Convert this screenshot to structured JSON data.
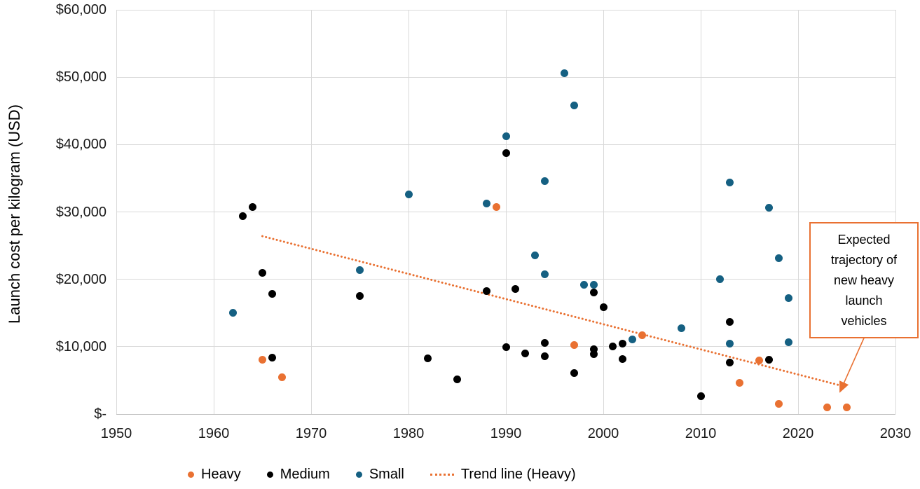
{
  "chart_data": {
    "type": "scatter",
    "title": "",
    "xlabel": "",
    "ylabel": "Launch cost per kilogram (USD)",
    "xlim": [
      1950,
      2030
    ],
    "ylim": [
      0,
      60000
    ],
    "grid": true,
    "legend_position": "bottom",
    "x_ticks": [
      {
        "v": 1950,
        "label": "1950"
      },
      {
        "v": 1960,
        "label": "1960"
      },
      {
        "v": 1970,
        "label": "1970"
      },
      {
        "v": 1980,
        "label": "1980"
      },
      {
        "v": 1990,
        "label": "1990"
      },
      {
        "v": 2000,
        "label": "2000"
      },
      {
        "v": 2010,
        "label": "2010"
      },
      {
        "v": 2020,
        "label": "2020"
      },
      {
        "v": 2030,
        "label": "2030"
      }
    ],
    "y_ticks": [
      {
        "v": 60000,
        "label": "$60,000"
      },
      {
        "v": 50000,
        "label": "$50,000"
      },
      {
        "v": 40000,
        "label": "$40,000"
      },
      {
        "v": 30000,
        "label": "$30,000"
      },
      {
        "v": 20000,
        "label": "$20,000"
      },
      {
        "v": 10000,
        "label": "$10,000"
      },
      {
        "v": 0,
        "label": "$-"
      }
    ],
    "series": [
      {
        "name": "Heavy",
        "color": "#E97132",
        "points": [
          [
            1965,
            8100
          ],
          [
            1967,
            5500
          ],
          [
            1989,
            30700
          ],
          [
            1997,
            10200
          ],
          [
            2004,
            11700
          ],
          [
            2014,
            4600
          ],
          [
            2016,
            8000
          ],
          [
            2018,
            1500
          ],
          [
            2023,
            1000
          ],
          [
            2025,
            1000
          ]
        ]
      },
      {
        "name": "Medium",
        "color": "#000000",
        "points": [
          [
            1963,
            29400
          ],
          [
            1964,
            30700
          ],
          [
            1965,
            21000
          ],
          [
            1966,
            17800
          ],
          [
            1966,
            8400
          ],
          [
            1975,
            17500
          ],
          [
            1982,
            8300
          ],
          [
            1985,
            5100
          ],
          [
            1988,
            18300
          ],
          [
            1990,
            38700
          ],
          [
            1990,
            9900
          ],
          [
            1991,
            18600
          ],
          [
            1992,
            9000
          ],
          [
            1994,
            10600
          ],
          [
            1994,
            8600
          ],
          [
            1997,
            6100
          ],
          [
            1999,
            18000
          ],
          [
            1999,
            9600
          ],
          [
            1999,
            8900
          ],
          [
            2000,
            15900
          ],
          [
            2001,
            10000
          ],
          [
            2002,
            10400
          ],
          [
            2002,
            8200
          ],
          [
            2010,
            2600
          ],
          [
            2013,
            13700
          ],
          [
            2013,
            7600
          ],
          [
            2017,
            8100
          ]
        ]
      },
      {
        "name": "Small",
        "color": "#156082",
        "points": [
          [
            1962,
            15000
          ],
          [
            1975,
            21400
          ],
          [
            1980,
            32600
          ],
          [
            1988,
            31200
          ],
          [
            1990,
            41200
          ],
          [
            1993,
            23600
          ],
          [
            1994,
            34600
          ],
          [
            1994,
            20700
          ],
          [
            1996,
            50600
          ],
          [
            1997,
            45800
          ],
          [
            1998,
            19200
          ],
          [
            1999,
            19200
          ],
          [
            2003,
            11100
          ],
          [
            2008,
            12700
          ],
          [
            2012,
            20000
          ],
          [
            2013,
            34400
          ],
          [
            2013,
            10500
          ],
          [
            2017,
            30600
          ],
          [
            2018,
            23100
          ],
          [
            2019,
            17200
          ],
          [
            2019,
            10700
          ]
        ]
      }
    ],
    "trend_line": {
      "name": "Trend line (Heavy)",
      "color": "#E97132",
      "style": "dotted",
      "from": [
        1965,
        26400
      ],
      "to": [
        2025,
        4000
      ]
    },
    "annotation": {
      "text": "Expected\ntrajectory of\nnew heavy\nlaunch\nvehicles",
      "border_color": "#E97132",
      "arrow": {
        "from": [
          2026.8,
          11400
        ],
        "to": [
          2024.3,
          3300
        ]
      }
    }
  }
}
